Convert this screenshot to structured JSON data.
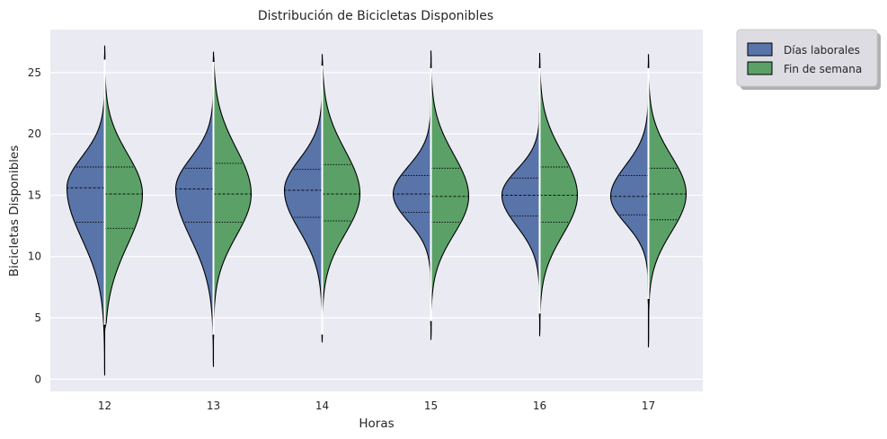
{
  "chart_data": {
    "type": "violin",
    "title": "Distribución de Bicicletas Disponibles",
    "xlabel": "Horas",
    "ylabel": "Bicicletas Disponibles",
    "categories": [
      "12",
      "13",
      "14",
      "15",
      "16",
      "17"
    ],
    "ylim": [
      -1,
      28.5
    ],
    "yticks": [
      0,
      5,
      10,
      15,
      20,
      25
    ],
    "grid": true,
    "split": true,
    "inner": "quartile",
    "legend": {
      "placement": "outside-top-right"
    },
    "series": [
      {
        "name": "Días laborales",
        "color": "#5874a9",
        "quartiles": [
          [
            12.8,
            15.6,
            17.3
          ],
          [
            12.8,
            15.5,
            17.2
          ],
          [
            13.2,
            15.4,
            17.1
          ],
          [
            13.6,
            15.1,
            16.6
          ],
          [
            13.3,
            15.0,
            16.4
          ],
          [
            13.4,
            14.9,
            16.6
          ]
        ],
        "range": [
          [
            0.3,
            26.5
          ],
          [
            1.0,
            26.3
          ],
          [
            3.0,
            26.0
          ],
          [
            4.3,
            25.8
          ],
          [
            4.9,
            25.8
          ],
          [
            6.1,
            25.8
          ]
        ]
      },
      {
        "name": "Fin de semana",
        "color": "#5ba167",
        "quartiles": [
          [
            12.3,
            15.1,
            17.3
          ],
          [
            12.8,
            15.1,
            17.6
          ],
          [
            12.9,
            15.1,
            17.5
          ],
          [
            12.8,
            14.9,
            17.2
          ],
          [
            12.8,
            15.0,
            17.3
          ],
          [
            13.0,
            15.1,
            17.2
          ]
        ],
        "range": [
          [
            4.0,
            27.2
          ],
          [
            3.2,
            26.7
          ],
          [
            3.2,
            26.5
          ],
          [
            3.2,
            26.8
          ],
          [
            3.5,
            26.6
          ],
          [
            2.6,
            26.5
          ]
        ]
      }
    ]
  }
}
